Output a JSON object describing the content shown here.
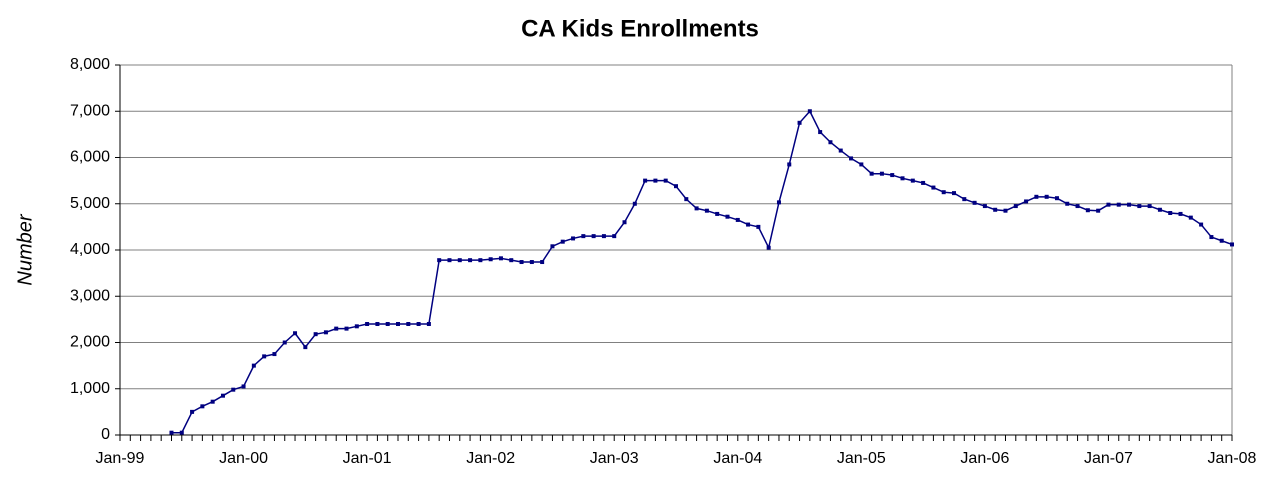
{
  "chart_data": {
    "type": "line",
    "title": "CA Kids Enrollments",
    "y_label": "Number",
    "categories": [
      "Jan-99",
      null,
      null,
      null,
      null,
      null,
      null,
      null,
      null,
      null,
      null,
      null,
      "Jan-00",
      null,
      null,
      null,
      null,
      null,
      null,
      null,
      null,
      null,
      null,
      null,
      "Jan-01",
      null,
      null,
      null,
      null,
      null,
      null,
      null,
      null,
      null,
      null,
      null,
      "Jan-02",
      null,
      null,
      null,
      null,
      null,
      null,
      null,
      null,
      null,
      null,
      null,
      "Jan-03",
      null,
      null,
      null,
      null,
      null,
      null,
      null,
      null,
      null,
      null,
      null,
      "Jan-04",
      null,
      null,
      null,
      null,
      null,
      null,
      null,
      null,
      null,
      null,
      null,
      "Jan-05",
      null,
      null,
      null,
      null,
      null,
      null,
      null,
      null,
      null,
      null,
      null,
      "Jan-06",
      null,
      null,
      null,
      null,
      null,
      null,
      null,
      null,
      null,
      null,
      null,
      "Jan-07",
      null,
      null,
      null,
      null,
      null,
      null,
      null,
      null,
      null,
      null,
      null,
      "Jan-08"
    ],
    "series": [
      {
        "name": "Enrollments",
        "color": "#000080",
        "values": [
          null,
          null,
          null,
          null,
          null,
          50,
          50,
          500,
          620,
          720,
          850,
          980,
          1050,
          1500,
          1700,
          1750,
          2000,
          2200,
          1900,
          2180,
          2220,
          2300,
          2300,
          2350,
          2400,
          2400,
          2400,
          2400,
          2400,
          2400,
          2400,
          3780,
          3780,
          3780,
          3780,
          3780,
          3800,
          3820,
          3780,
          3740,
          3740,
          3740,
          4080,
          4180,
          4250,
          4300,
          4300,
          4300,
          4300,
          4600,
          5000,
          5500,
          5500,
          5500,
          5380,
          5100,
          4900,
          4850,
          4780,
          4720,
          4650,
          4550,
          4500,
          4050,
          5030,
          5850,
          6750,
          7000,
          6550,
          6330,
          6150,
          5980,
          5850,
          5650,
          5650,
          5620,
          5550,
          5500,
          5450,
          5350,
          5250,
          5230,
          5100,
          5020,
          4950,
          4870,
          4850,
          4950,
          5050,
          5150,
          5150,
          5120,
          5000,
          4950,
          4860,
          4850,
          4980,
          4980,
          4980,
          4950,
          4950,
          4870,
          4800,
          4780,
          4700,
          4550,
          4280,
          4200,
          4120
        ]
      }
    ],
    "ylim": [
      0,
      8000
    ],
    "yticks": [
      0,
      {
        "value": 1000,
        "label": "1,000"
      },
      {
        "value": 2000,
        "label": "2,000"
      },
      {
        "value": 3000,
        "label": "3,000"
      },
      {
        "value": 4000,
        "label": "4,000"
      },
      {
        "value": 5000,
        "label": "5,000"
      },
      {
        "value": 6000,
        "label": "6,000"
      },
      {
        "value": 7000,
        "label": "7,000"
      },
      {
        "value": 8000,
        "label": "8,000"
      }
    ],
    "grid": true
  }
}
